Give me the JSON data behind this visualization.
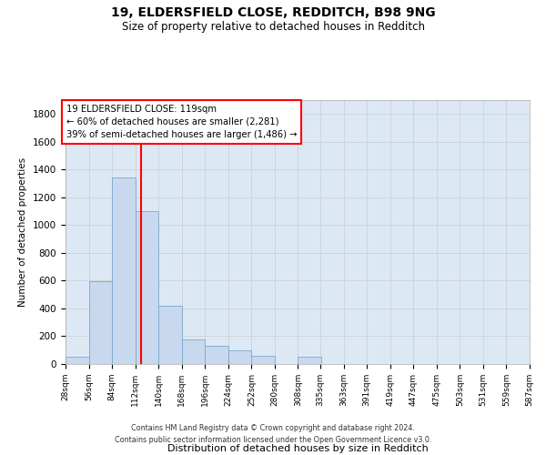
{
  "title_line1": "19, ELDERSFIELD CLOSE, REDDITCH, B98 9NG",
  "title_line2": "Size of property relative to detached houses in Redditch",
  "xlabel": "Distribution of detached houses by size in Redditch",
  "ylabel": "Number of detached properties",
  "footer_line1": "Contains HM Land Registry data © Crown copyright and database right 2024.",
  "footer_line2": "Contains public sector information licensed under the Open Government Licence v3.0.",
  "annotation_line1": "19 ELDERSFIELD CLOSE: 119sqm",
  "annotation_line2": "← 60% of detached houses are smaller (2,281)",
  "annotation_line3": "39% of semi-detached houses are larger (1,486) →",
  "property_size": 119,
  "bar_color": "#c8d8ee",
  "bar_edge_color": "#7aa8cc",
  "vline_color": "red",
  "grid_color": "#cccccc",
  "plot_bg_color": "#dce9f5",
  "ylim": [
    0,
    1900
  ],
  "bin_edges": [
    28,
    56,
    84,
    112,
    140,
    168,
    196,
    224,
    252,
    280,
    308,
    335,
    363,
    391,
    419,
    447,
    475,
    503,
    531,
    559,
    587
  ],
  "bar_heights": [
    55,
    595,
    1345,
    1100,
    420,
    175,
    130,
    100,
    60,
    0,
    55,
    0,
    0,
    0,
    0,
    0,
    0,
    0,
    0,
    0
  ]
}
